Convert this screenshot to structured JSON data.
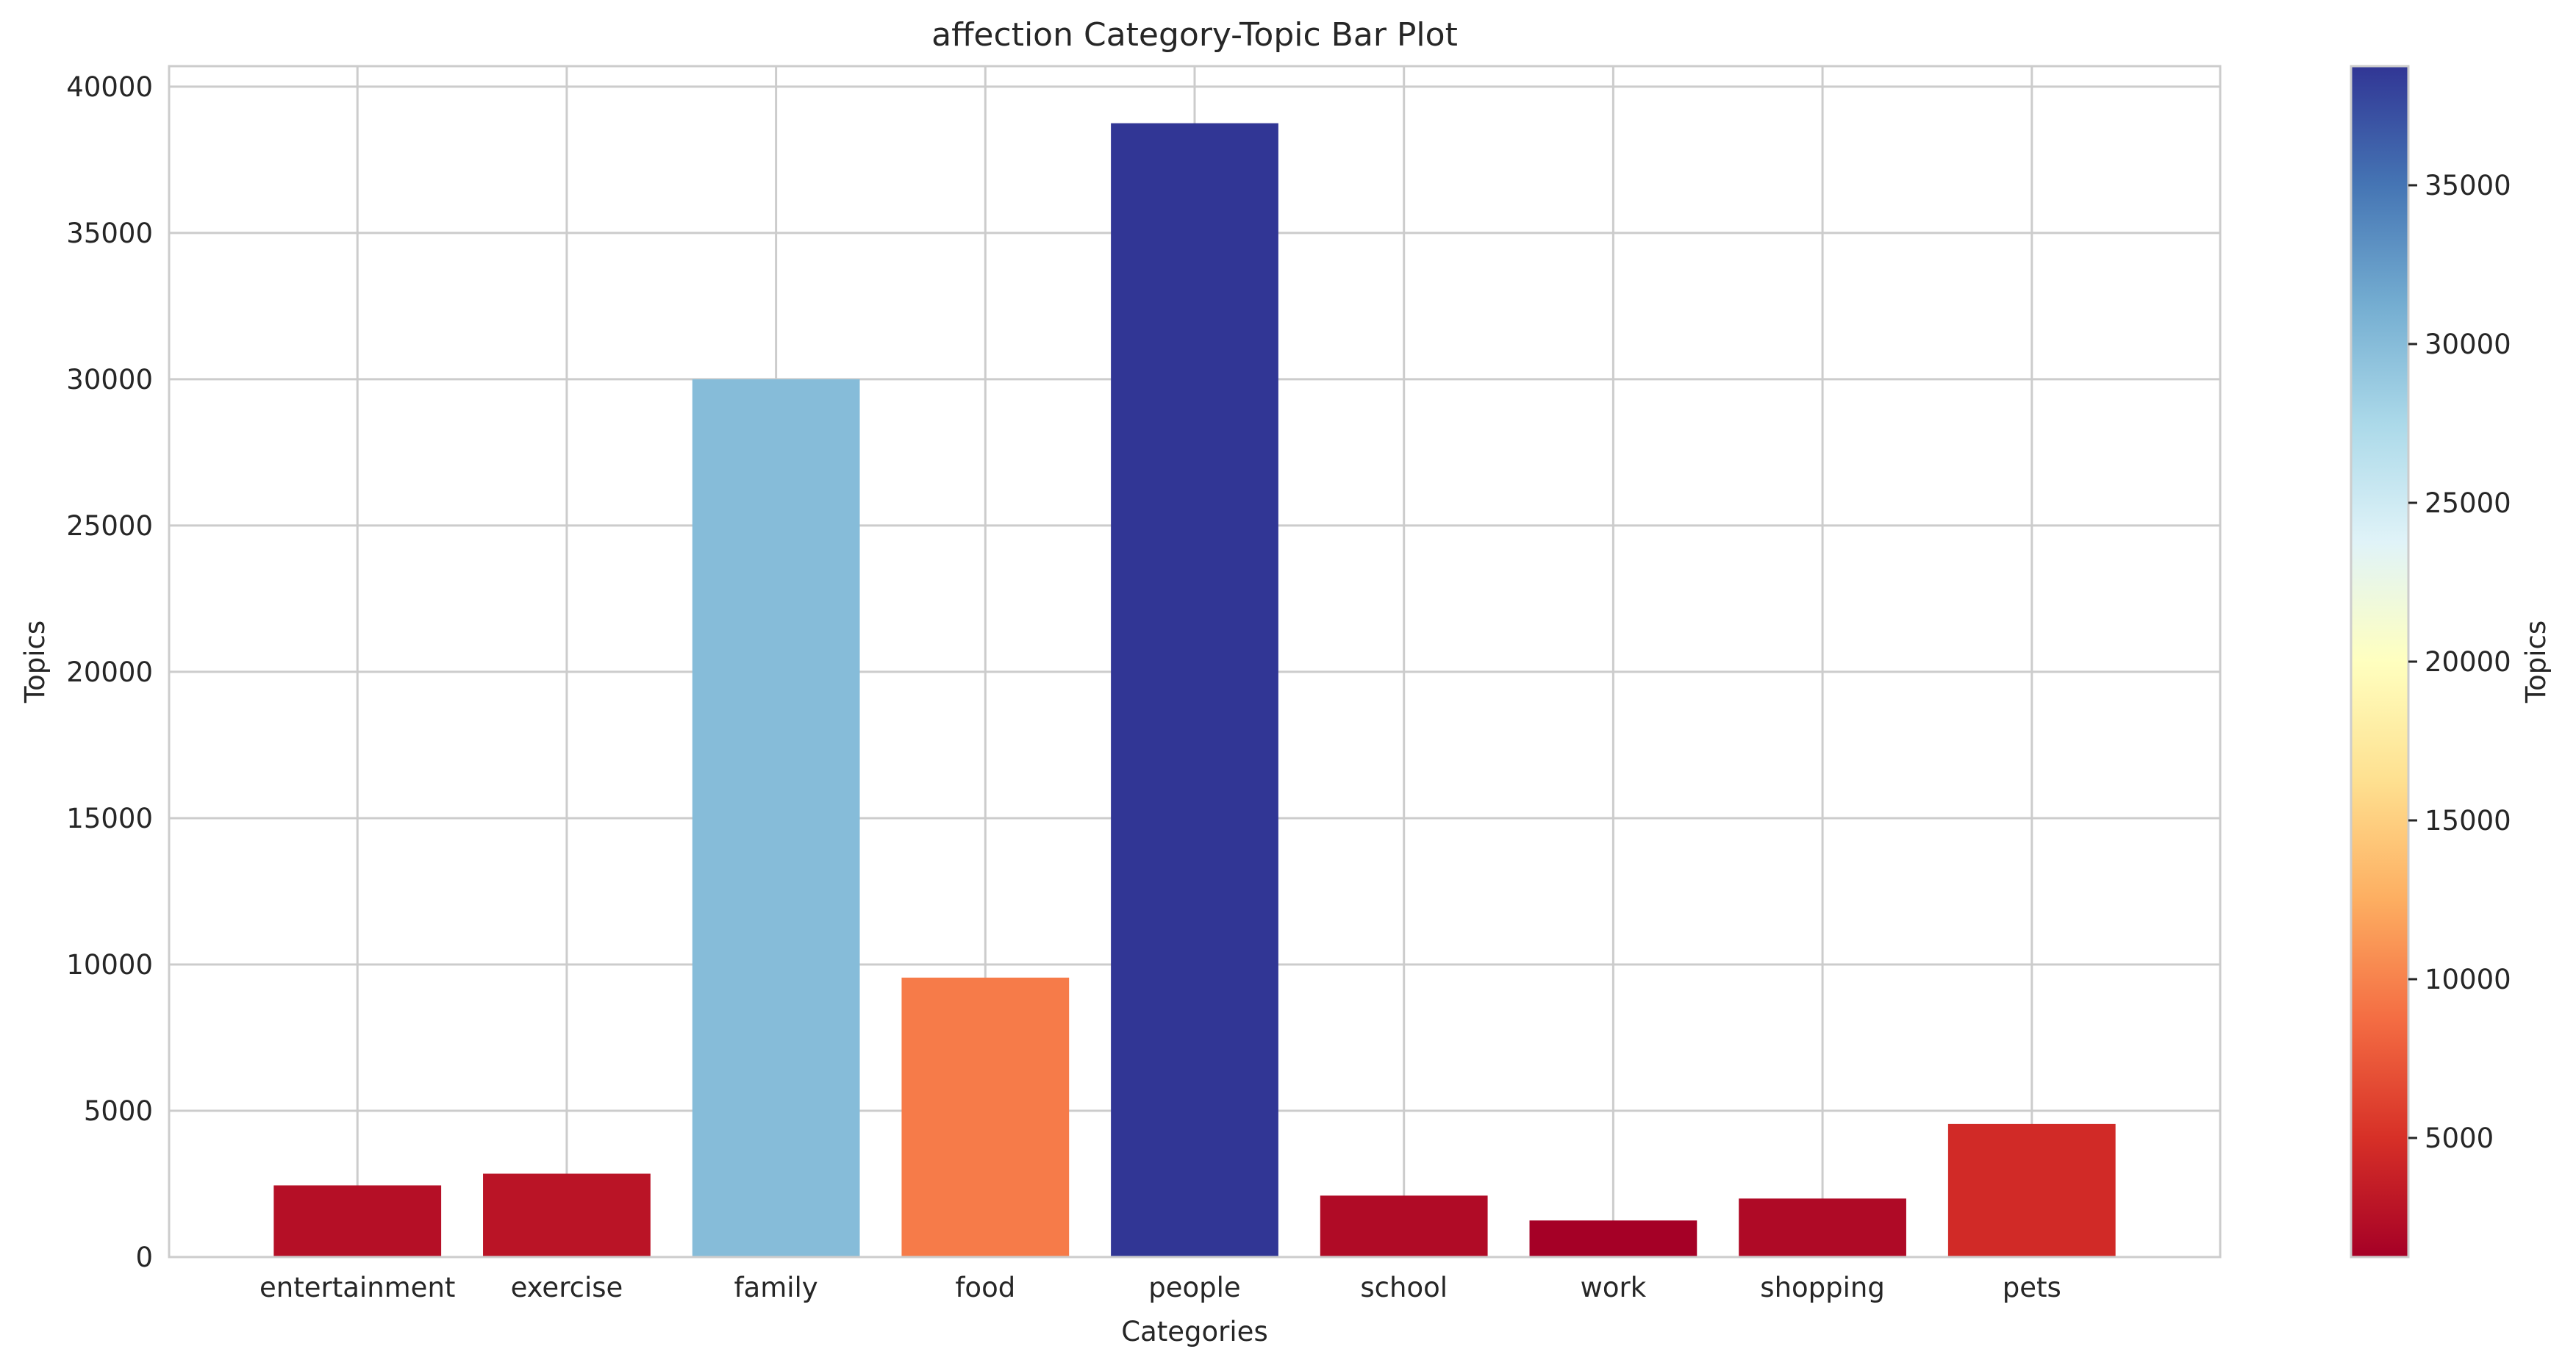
{
  "chart_data": {
    "type": "bar",
    "title": "affection Category-Topic Bar Plot",
    "xlabel": "Categories",
    "ylabel": "Topics",
    "categories": [
      "entertainment",
      "exercise",
      "family",
      "food",
      "people",
      "school",
      "work",
      "shopping",
      "pets"
    ],
    "values": [
      2450,
      2850,
      30000,
      9550,
      38750,
      2100,
      1250,
      2000,
      4550
    ],
    "ylim": [
      0,
      40700
    ],
    "yticks": [
      0,
      5000,
      10000,
      15000,
      20000,
      25000,
      30000,
      35000,
      40000
    ],
    "grid": true,
    "colormap": {
      "name": "RdYlBu",
      "label": "Topics",
      "range": [
        1250,
        38750
      ],
      "ticks": [
        5000,
        10000,
        15000,
        20000,
        25000,
        30000,
        35000
      ],
      "stops": [
        "#a50026",
        "#d73027",
        "#f46d43",
        "#fdae61",
        "#fee090",
        "#ffffbf",
        "#e0f3f8",
        "#abd9e9",
        "#74add1",
        "#4575b4",
        "#313695"
      ]
    },
    "colors": {
      "grid": "#cccccc",
      "frame": "#cccccc",
      "text": "#262626"
    }
  }
}
